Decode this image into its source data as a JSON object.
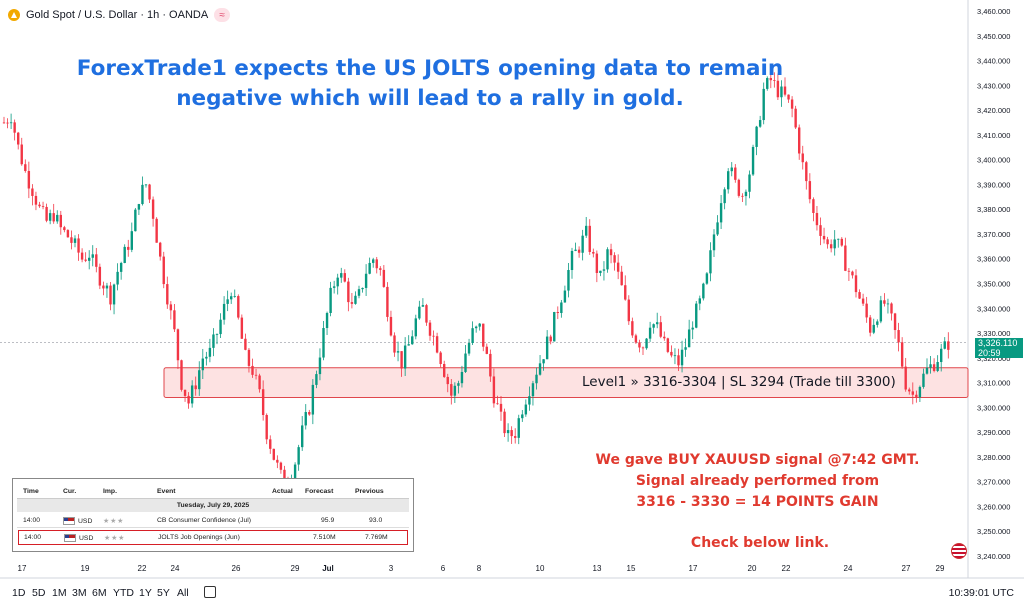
{
  "header": {
    "symbol": "Gold Spot / U.S. Dollar · 1h · OANDA",
    "badge_icon": "approx-icon"
  },
  "headline": {
    "line1": "ForexTrade1 expects the US JOLTS opening data to remain",
    "line2": "negative which will lead to a rally in gold."
  },
  "zone": {
    "label": "Level1 » 3316-3304 | SL 3294 (Trade till 3300)",
    "fill": "#fde2e2",
    "stroke": "#e0474c"
  },
  "signal": {
    "line1": "We gave BUY XAUUSD signal @7:42 GMT.",
    "line2": "Signal already performed from",
    "line3": "3316 - 3330 = 14 POINTS GAIN",
    "check": "Check below link.",
    "color": "#e03a2f"
  },
  "price_tag": {
    "price": "3,326.110",
    "countdown": "20:59",
    "color": "#089981"
  },
  "calendar": {
    "headers": [
      "Time",
      "Cur.",
      "Imp.",
      "Event",
      "Actual",
      "Forecast",
      "Previous"
    ],
    "date": "Tuesday, July 29, 2025",
    "rows": [
      {
        "time": "14:00",
        "cur": "USD",
        "imp": "★★★",
        "event": "CB Consumer Confidence (Jul)",
        "actual": "",
        "forecast": "95.9",
        "previous": "93.0"
      },
      {
        "time": "14:00",
        "cur": "USD",
        "imp": "★★★",
        "event": "JOLTS Job Openings (Jun)",
        "actual": "",
        "forecast": "7.510M",
        "previous": "7.769M"
      }
    ]
  },
  "timeframes": [
    "1D",
    "5D",
    "1M",
    "3M",
    "6M",
    "YTD",
    "1Y",
    "5Y",
    "All"
  ],
  "clock": "10:39:01 UTC",
  "chart_data": {
    "type": "candlestick",
    "ylim": [
      3240,
      3460
    ],
    "y_ticks": [
      "3,460.000",
      "3,450.000",
      "3,440.000",
      "3,430.000",
      "3,420.000",
      "3,410.000",
      "3,400.000",
      "3,390.000",
      "3,380.000",
      "3,370.000",
      "3,360.000",
      "3,350.000",
      "3,340.000",
      "3,330.000",
      "3,320.000",
      "3,310.000",
      "3,300.000",
      "3,290.000",
      "3,280.000",
      "3,270.000",
      "3,260.000",
      "3,250.000",
      "3,240.000"
    ],
    "x_ticks": [
      "17",
      "19",
      "22",
      "24",
      "26",
      "29",
      "Jul",
      "3",
      "6",
      "8",
      "10",
      "13",
      "15",
      "17",
      "20",
      "22",
      "24",
      "27",
      "29"
    ],
    "zone": [
      3304,
      3316
    ],
    "last_price": 3326.11,
    "up_color": "#089981",
    "down_color": "#f23645",
    "path": [
      [
        0,
        3415
      ],
      [
        2,
        3418
      ],
      [
        4,
        3405
      ],
      [
        6,
        3395
      ],
      [
        8,
        3388
      ],
      [
        10,
        3380
      ],
      [
        12,
        3375
      ],
      [
        14,
        3378
      ],
      [
        16,
        3372
      ],
      [
        18,
        3369
      ],
      [
        20,
        3365
      ],
      [
        22,
        3360
      ],
      [
        24,
        3362
      ],
      [
        26,
        3355
      ],
      [
        28,
        3350
      ],
      [
        30,
        3345
      ],
      [
        32,
        3355
      ],
      [
        34,
        3362
      ],
      [
        36,
        3370
      ],
      [
        38,
        3385
      ],
      [
        40,
        3390
      ],
      [
        42,
        3378
      ],
      [
        44,
        3360
      ],
      [
        46,
        3345
      ],
      [
        48,
        3330
      ],
      [
        50,
        3310
      ],
      [
        52,
        3302
      ],
      [
        54,
        3310
      ],
      [
        56,
        3320
      ],
      [
        58,
        3322
      ],
      [
        60,
        3330
      ],
      [
        62,
        3340
      ],
      [
        64,
        3348
      ],
      [
        66,
        3335
      ],
      [
        68,
        3320
      ],
      [
        70,
        3315
      ],
      [
        72,
        3305
      ],
      [
        74,
        3290
      ],
      [
        76,
        3280
      ],
      [
        78,
        3272
      ],
      [
        80,
        3270
      ],
      [
        82,
        3278
      ],
      [
        84,
        3290
      ],
      [
        86,
        3300
      ],
      [
        88,
        3315
      ],
      [
        90,
        3330
      ],
      [
        92,
        3345
      ],
      [
        94,
        3355
      ],
      [
        96,
        3350
      ],
      [
        98,
        3340
      ],
      [
        100,
        3345
      ],
      [
        102,
        3355
      ],
      [
        104,
        3360
      ],
      [
        106,
        3355
      ],
      [
        108,
        3340
      ],
      [
        110,
        3325
      ],
      [
        112,
        3318
      ],
      [
        114,
        3325
      ],
      [
        116,
        3335
      ],
      [
        118,
        3340
      ],
      [
        120,
        3332
      ],
      [
        122,
        3325
      ],
      [
        124,
        3315
      ],
      [
        126,
        3305
      ],
      [
        128,
        3310
      ],
      [
        130,
        3322
      ],
      [
        132,
        3330
      ],
      [
        134,
        3332
      ],
      [
        136,
        3320
      ],
      [
        138,
        3305
      ],
      [
        140,
        3295
      ],
      [
        142,
        3288
      ],
      [
        144,
        3290
      ],
      [
        146,
        3300
      ],
      [
        148,
        3308
      ],
      [
        150,
        3315
      ],
      [
        152,
        3322
      ],
      [
        154,
        3330
      ],
      [
        156,
        3340
      ],
      [
        158,
        3350
      ],
      [
        160,
        3360
      ],
      [
        162,
        3365
      ],
      [
        164,
        3370
      ],
      [
        166,
        3360
      ],
      [
        168,
        3352
      ],
      [
        170,
        3362
      ],
      [
        172,
        3358
      ],
      [
        174,
        3348
      ],
      [
        176,
        3335
      ],
      [
        178,
        3328
      ],
      [
        180,
        3325
      ],
      [
        182,
        3335
      ],
      [
        184,
        3332
      ],
      [
        186,
        3325
      ],
      [
        188,
        3320
      ],
      [
        190,
        3318
      ],
      [
        192,
        3325
      ],
      [
        194,
        3335
      ],
      [
        196,
        3342
      ],
      [
        198,
        3352
      ],
      [
        200,
        3370
      ],
      [
        202,
        3385
      ],
      [
        204,
        3398
      ],
      [
        206,
        3390
      ],
      [
        208,
        3386
      ],
      [
        210,
        3395
      ],
      [
        212,
        3410
      ],
      [
        214,
        3428
      ],
      [
        216,
        3432
      ],
      [
        218,
        3428
      ],
      [
        220,
        3425
      ],
      [
        222,
        3420
      ],
      [
        224,
        3405
      ],
      [
        226,
        3390
      ],
      [
        228,
        3378
      ],
      [
        230,
        3372
      ],
      [
        232,
        3365
      ],
      [
        234,
        3368
      ],
      [
        236,
        3362
      ],
      [
        238,
        3355
      ],
      [
        240,
        3348
      ],
      [
        242,
        3340
      ],
      [
        244,
        3332
      ],
      [
        246,
        3338
      ],
      [
        248,
        3342
      ],
      [
        250,
        3335
      ],
      [
        252,
        3325
      ],
      [
        254,
        3310
      ],
      [
        256,
        3305
      ],
      [
        258,
        3310
      ],
      [
        260,
        3315
      ],
      [
        262,
        3318
      ],
      [
        264,
        3322
      ],
      [
        266,
        3326
      ]
    ]
  }
}
